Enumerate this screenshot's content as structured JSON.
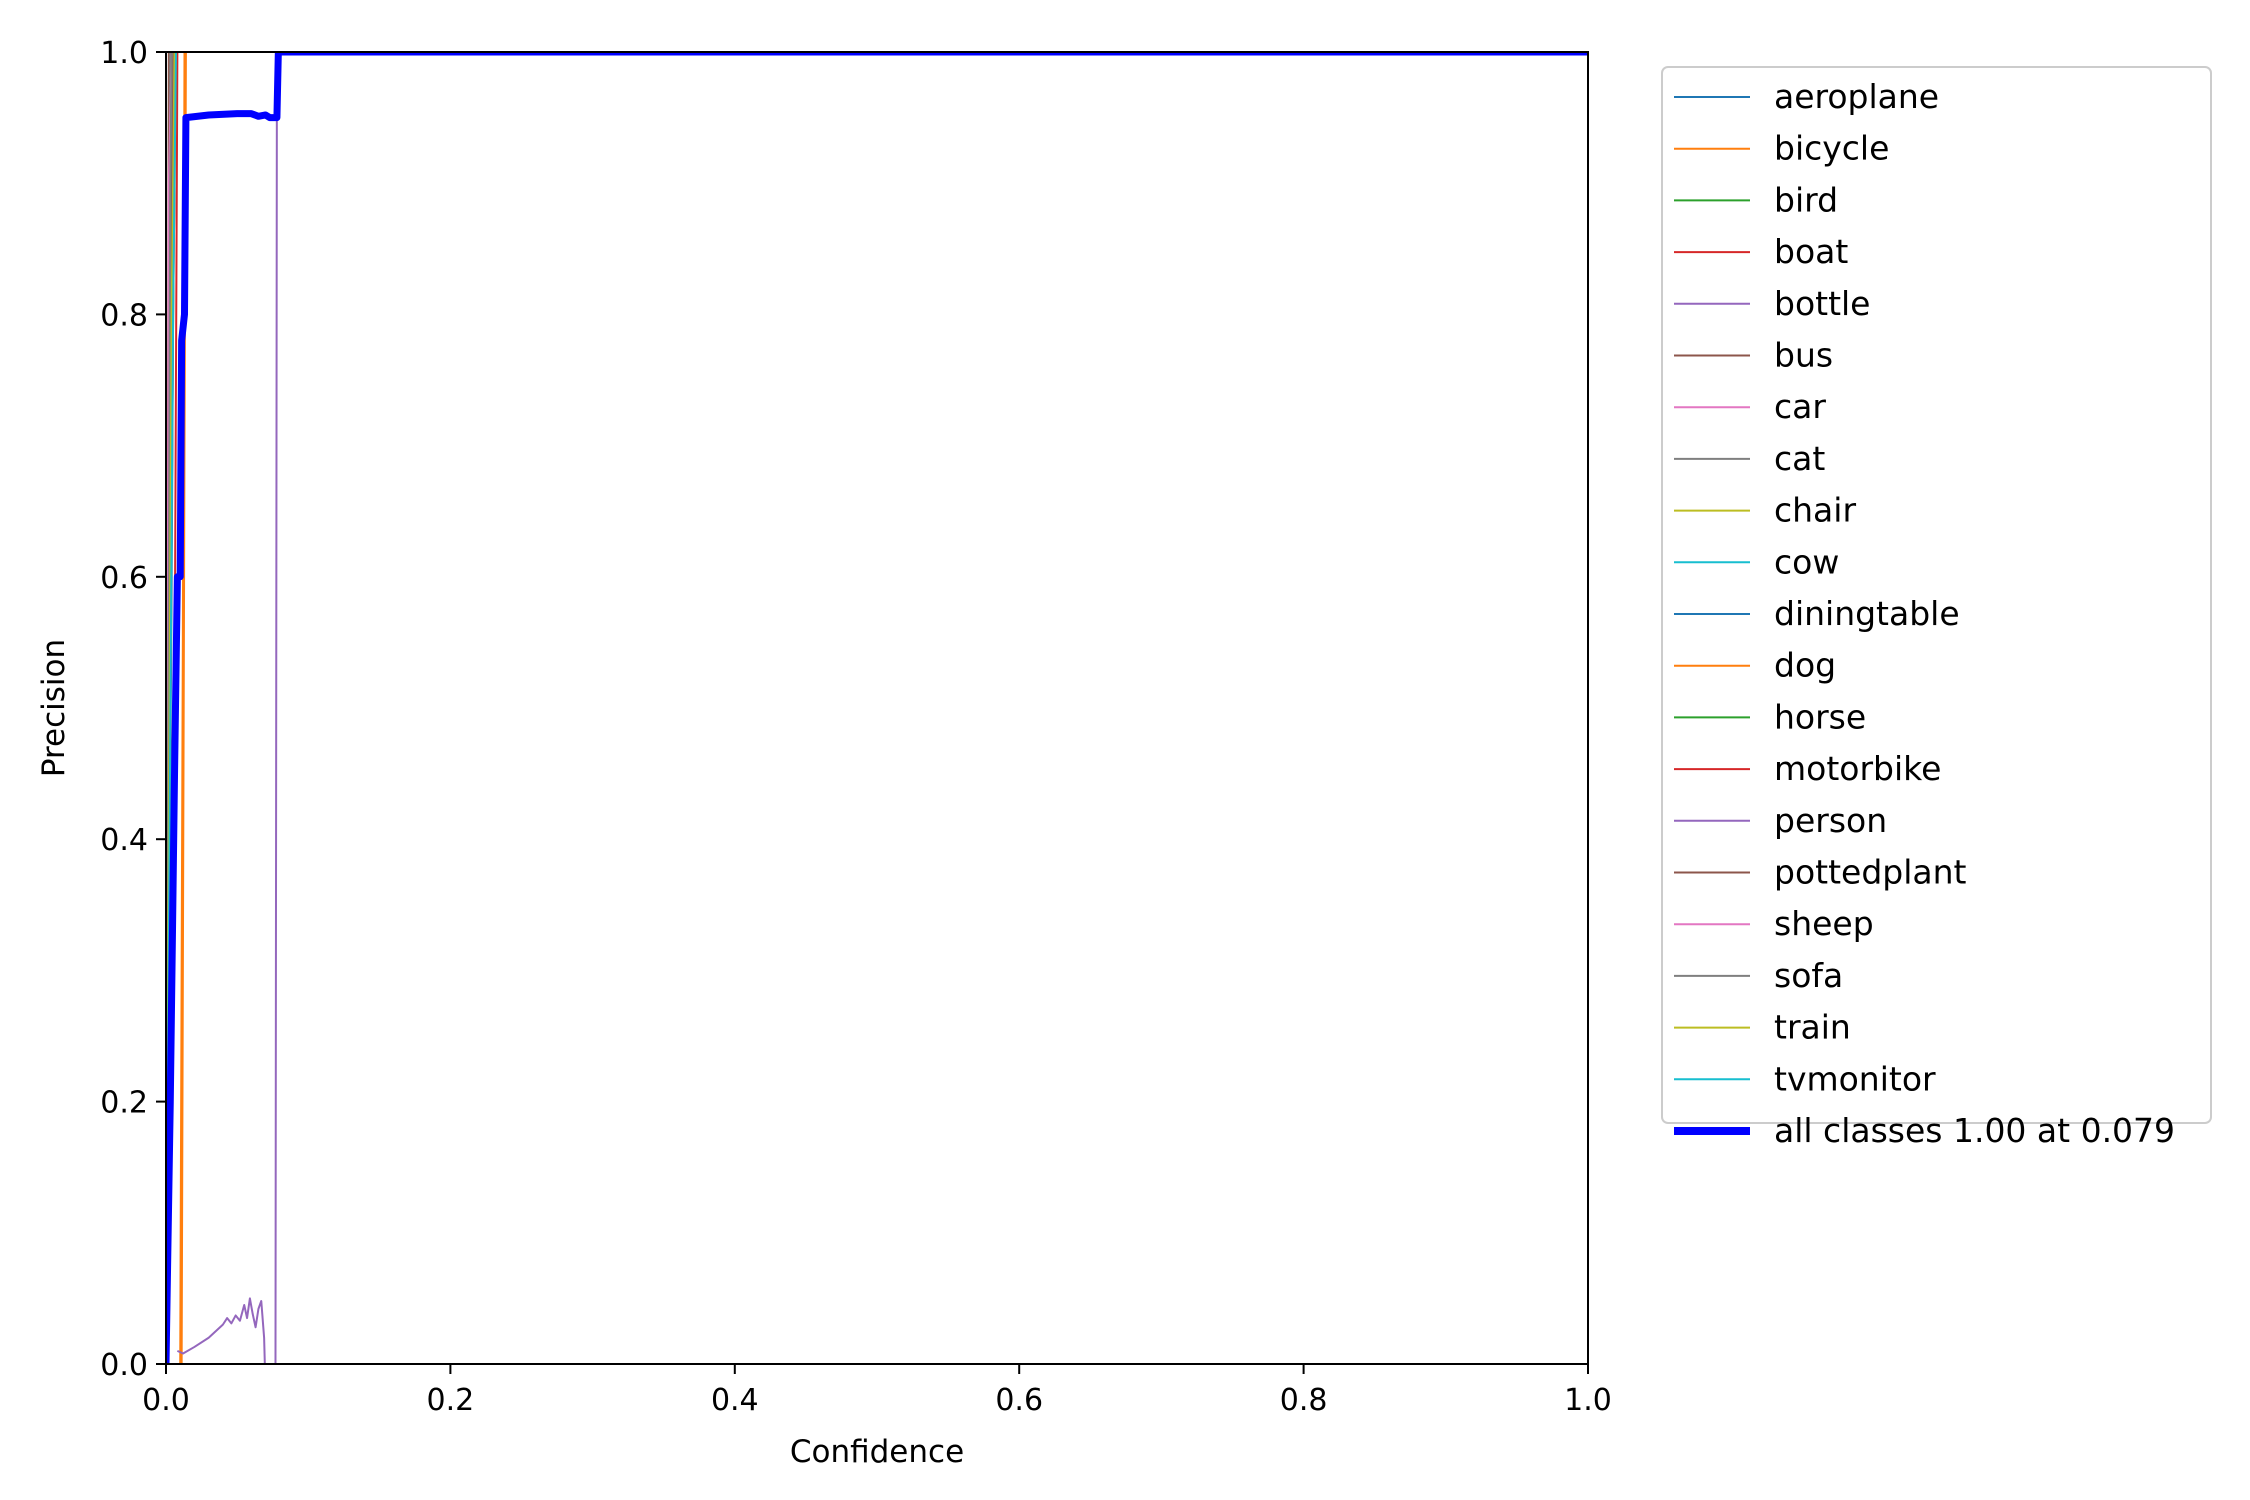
{
  "chart_data": {
    "type": "line",
    "title": "",
    "xlabel": "Confidence",
    "ylabel": "Precision",
    "xlim": [
      0,
      1
    ],
    "ylim": [
      0,
      1
    ],
    "xticks": [
      "0.0",
      "0.2",
      "0.4",
      "0.6",
      "0.8",
      "1.0"
    ],
    "yticks": [
      "0.0",
      "0.2",
      "0.4",
      "0.6",
      "0.8",
      "1.0"
    ],
    "grid": false,
    "legend_position": "outside-right",
    "series": [
      {
        "name": "aeroplane",
        "color": "#1f77b4",
        "width": 2,
        "points": [
          [
            0,
            0
          ],
          [
            0.004,
            0.8
          ],
          [
            0.006,
            1.0
          ],
          [
            1.0,
            1.0
          ]
        ]
      },
      {
        "name": "bicycle",
        "color": "#ff7f0e",
        "width": 2,
        "points": [
          [
            0.01,
            0.0
          ],
          [
            0.012,
            0.6
          ],
          [
            0.013,
            1.0
          ],
          [
            1.0,
            1.0
          ]
        ]
      },
      {
        "name": "bird",
        "color": "#2ca02c",
        "width": 2,
        "points": [
          [
            0,
            0
          ],
          [
            0.003,
            0.6
          ],
          [
            0.005,
            1.0
          ],
          [
            1.0,
            1.0
          ]
        ]
      },
      {
        "name": "boat",
        "color": "#d62728",
        "width": 2,
        "points": [
          [
            0,
            0
          ],
          [
            0.006,
            0.5
          ],
          [
            0.008,
            1.0
          ],
          [
            1.0,
            1.0
          ]
        ]
      },
      {
        "name": "bottle",
        "color": "#9467bd",
        "width": 2,
        "points": [
          [
            0.077,
            0.0
          ],
          [
            0.078,
            1.0
          ],
          [
            1.0,
            1.0
          ]
        ]
      },
      {
        "name": "bus",
        "color": "#8c564b",
        "width": 2,
        "points": [
          [
            0,
            0
          ],
          [
            0.002,
            1.0
          ],
          [
            1.0,
            1.0
          ]
        ]
      },
      {
        "name": "car",
        "color": "#e377c2",
        "width": 2,
        "points": [
          [
            0,
            0
          ],
          [
            0.003,
            0.9
          ],
          [
            0.004,
            1.0
          ],
          [
            1.0,
            1.0
          ]
        ]
      },
      {
        "name": "cat",
        "color": "#7f7f7f",
        "width": 2,
        "points": [
          [
            0,
            0
          ],
          [
            0.003,
            1.0
          ],
          [
            1.0,
            1.0
          ]
        ]
      },
      {
        "name": "chair",
        "color": "#bcbd22",
        "width": 2,
        "points": [
          [
            0,
            0
          ],
          [
            0.004,
            0.9
          ],
          [
            0.005,
            1.0
          ],
          [
            1.0,
            1.0
          ]
        ]
      },
      {
        "name": "cow",
        "color": "#17becf",
        "width": 2,
        "points": [
          [
            0,
            0
          ],
          [
            0.003,
            0.7
          ],
          [
            0.005,
            1.0
          ],
          [
            1.0,
            1.0
          ]
        ]
      },
      {
        "name": "diningtable",
        "color": "#1f77b4",
        "width": 2,
        "points": [
          [
            0,
            0
          ],
          [
            0.004,
            0.6
          ],
          [
            0.006,
            1.0
          ],
          [
            1.0,
            1.0
          ]
        ]
      },
      {
        "name": "dog",
        "color": "#ff7f0e",
        "width": 2,
        "points": [
          [
            0.011,
            0.0
          ],
          [
            0.013,
            0.7
          ],
          [
            0.014,
            1.0
          ],
          [
            1.0,
            1.0
          ]
        ]
      },
      {
        "name": "horse",
        "color": "#2ca02c",
        "width": 2,
        "points": [
          [
            0,
            0
          ],
          [
            0.004,
            0.9
          ],
          [
            0.006,
            1.0
          ],
          [
            1.0,
            1.0
          ]
        ]
      },
      {
        "name": "motorbike",
        "color": "#d62728",
        "width": 2,
        "points": [
          [
            0,
            0
          ],
          [
            0.005,
            0.8
          ],
          [
            0.007,
            1.0
          ],
          [
            1.0,
            1.0
          ]
        ]
      },
      {
        "name": "person",
        "color": "#9467bd",
        "width": 2,
        "points": [
          [
            0.008,
            0.01
          ],
          [
            0.012,
            0.008
          ],
          [
            0.02,
            0.013
          ],
          [
            0.03,
            0.02
          ],
          [
            0.036,
            0.026
          ],
          [
            0.04,
            0.03
          ],
          [
            0.043,
            0.035
          ],
          [
            0.046,
            0.031
          ],
          [
            0.049,
            0.037
          ],
          [
            0.052,
            0.033
          ],
          [
            0.055,
            0.045
          ],
          [
            0.057,
            0.035
          ],
          [
            0.059,
            0.05
          ],
          [
            0.061,
            0.038
          ],
          [
            0.063,
            0.028
          ],
          [
            0.065,
            0.042
          ],
          [
            0.067,
            0.048
          ],
          [
            0.069,
            0.02
          ],
          [
            0.0695,
            0.0
          ]
        ]
      },
      {
        "name": "pottedplant",
        "color": "#8c564b",
        "width": 2,
        "points": [
          [
            0,
            0
          ],
          [
            0.003,
            0.8
          ],
          [
            0.005,
            1.0
          ],
          [
            1.0,
            1.0
          ]
        ]
      },
      {
        "name": "sheep",
        "color": "#e377c2",
        "width": 2,
        "points": [
          [
            0,
            0
          ],
          [
            0.002,
            0.9
          ],
          [
            0.004,
            1.0
          ],
          [
            1.0,
            1.0
          ]
        ]
      },
      {
        "name": "sofa",
        "color": "#7f7f7f",
        "width": 2,
        "points": [
          [
            0,
            0
          ],
          [
            0.003,
            0.9
          ],
          [
            0.004,
            1.0
          ],
          [
            1.0,
            1.0
          ]
        ]
      },
      {
        "name": "train",
        "color": "#bcbd22",
        "width": 2,
        "points": [
          [
            0,
            0
          ],
          [
            0.004,
            0.8
          ],
          [
            0.006,
            1.0
          ],
          [
            1.0,
            1.0
          ]
        ]
      },
      {
        "name": "tvmonitor",
        "color": "#17becf",
        "width": 2,
        "points": [
          [
            0,
            0
          ],
          [
            0.005,
            0.8
          ],
          [
            0.007,
            1.0
          ],
          [
            1.0,
            1.0
          ]
        ]
      },
      {
        "name": "all classes 1.00 at 0.079",
        "color": "#0000ff",
        "width": 7,
        "points": [
          [
            0,
            0
          ],
          [
            0.003,
            0.2
          ],
          [
            0.006,
            0.45
          ],
          [
            0.008,
            0.6
          ],
          [
            0.01,
            0.6
          ],
          [
            0.011,
            0.78
          ],
          [
            0.013,
            0.8
          ],
          [
            0.014,
            0.95
          ],
          [
            0.03,
            0.952
          ],
          [
            0.05,
            0.953
          ],
          [
            0.06,
            0.953
          ],
          [
            0.065,
            0.951
          ],
          [
            0.07,
            0.952
          ],
          [
            0.073,
            0.95
          ],
          [
            0.078,
            0.95
          ],
          [
            0.079,
            1.0
          ],
          [
            1.0,
            1.0
          ]
        ]
      }
    ]
  }
}
